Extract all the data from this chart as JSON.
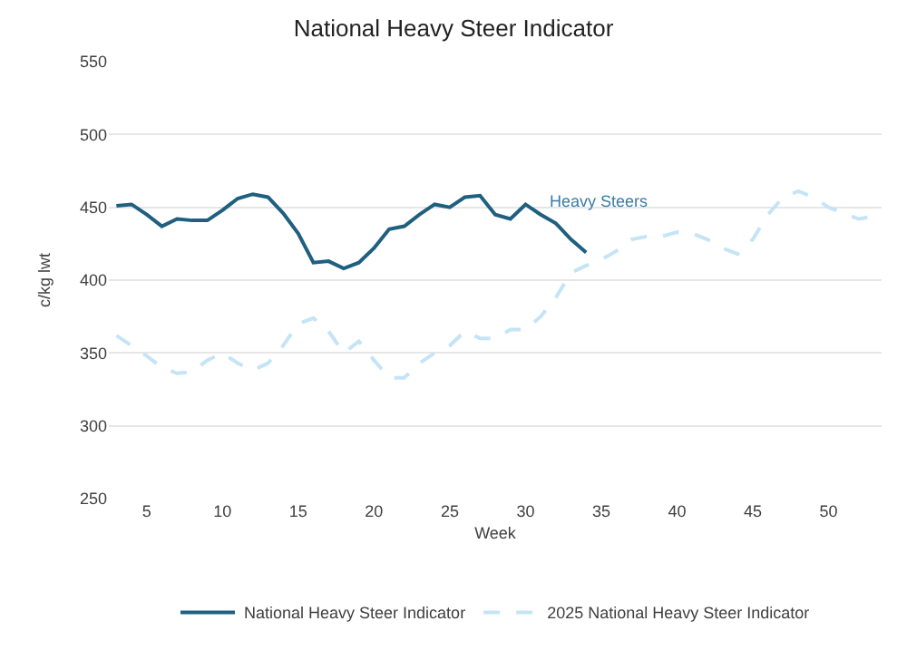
{
  "chart_data": {
    "type": "line",
    "title": "National Heavy Steer Indicator",
    "xlabel": "Week",
    "ylabel": "c/kg lwt",
    "xlim": [
      2.5,
      53.5
    ],
    "xticks": [
      5,
      10,
      15,
      20,
      25,
      30,
      35,
      40,
      45,
      50
    ],
    "ylim": [
      250,
      550
    ],
    "yticks": [
      250,
      300,
      350,
      400,
      450,
      500,
      550
    ],
    "grid": "y",
    "legend": "bottom",
    "marker": "none",
    "annotations": [
      "Heavy Steers"
    ],
    "series": [
      {
        "name": "National Heavy Steer Indicator",
        "color": "#1f5f7f",
        "line_style": "solid",
        "x": [
          3,
          4,
          5,
          6,
          7,
          8,
          9,
          10,
          11,
          12,
          13,
          14,
          15,
          16,
          17,
          18,
          19,
          20,
          21,
          22,
          23,
          24,
          25,
          26,
          27,
          28,
          29,
          30,
          31,
          32,
          33,
          34
        ],
        "values": [
          451,
          452,
          445,
          437,
          442,
          441,
          441,
          448,
          456,
          459,
          457,
          446,
          432,
          412,
          413,
          408,
          412,
          422,
          435,
          437,
          445,
          452,
          450,
          457,
          458,
          445,
          442,
          452,
          445,
          439,
          428,
          419
        ]
      },
      {
        "name": "2025 National Heavy Steer Indicator",
        "color": "#c5e4f5",
        "line_style": "dashed",
        "x": [
          3,
          4,
          5,
          6,
          7,
          8,
          9,
          10,
          11,
          12,
          13,
          14,
          15,
          16,
          17,
          18,
          19,
          20,
          21,
          22,
          23,
          24,
          25,
          26,
          27,
          28,
          29,
          30,
          31,
          32,
          33,
          34,
          35,
          36,
          37,
          38,
          39,
          40,
          41,
          42,
          43,
          44,
          45,
          46,
          47,
          48,
          49,
          50,
          51,
          52,
          53
        ],
        "values": [
          362,
          355,
          348,
          340,
          336,
          337,
          345,
          350,
          343,
          338,
          343,
          355,
          370,
          374,
          365,
          350,
          358,
          345,
          333,
          333,
          343,
          350,
          355,
          365,
          360,
          360,
          366,
          366,
          375,
          388,
          405,
          410,
          414,
          420,
          428,
          430,
          430,
          433,
          432,
          428,
          422,
          418,
          428,
          445,
          457,
          461,
          457,
          450,
          446,
          442,
          444
        ]
      }
    ]
  }
}
